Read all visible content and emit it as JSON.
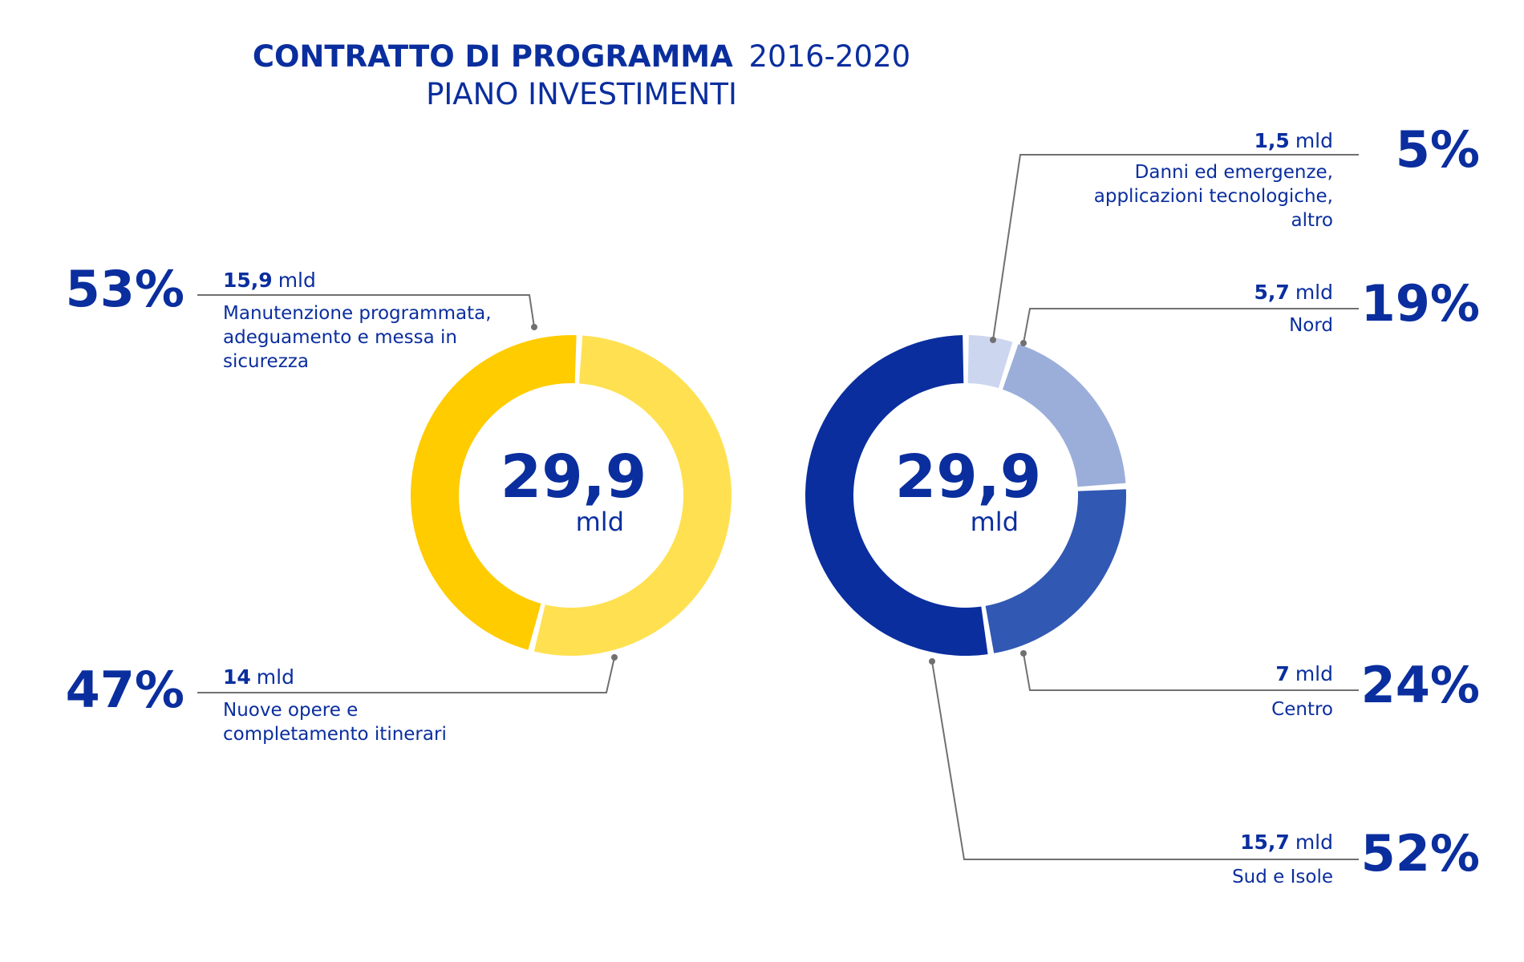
{
  "title": {
    "bold": "CONTRATTO DI PROGRAMMA",
    "regular": "2016-2020",
    "subtitle": "PIANO INVESTIMENTI"
  },
  "unit": "mld",
  "colors": {
    "text": "#0A2E9E",
    "leader": "#707070",
    "yellow_dark": "#FFCC00",
    "yellow_light": "#FFE050",
    "blue_dark": "#0A2E9E",
    "blue_mid": "#3158B3",
    "blue_light": "#9BAEDA",
    "blue_pale": "#CCD6EE"
  },
  "chart_data": [
    {
      "type": "donut",
      "center_value": "29,9",
      "center_unit": "mld",
      "total": 29.9,
      "slices": [
        {
          "pct_label": "53%",
          "value": 15.9,
          "value_label": "15,9",
          "unit": "mld",
          "label": [
            "Manutenzione programmata,",
            "adeguamento e messa in",
            "sicurezza"
          ],
          "color": "#FFE050"
        },
        {
          "pct_label": "47%",
          "value": 14,
          "value_label": "14",
          "unit": "mld",
          "label": [
            "Nuove opere e",
            "completamento itinerari"
          ],
          "color": "#FFCC00"
        }
      ]
    },
    {
      "type": "donut",
      "center_value": "29,9",
      "center_unit": "mld",
      "total": 29.9,
      "slices": [
        {
          "pct_label": "5%",
          "value": 1.5,
          "value_label": "1,5",
          "unit": "mld",
          "label": [
            "Danni ed emergenze,",
            "applicazioni tecnologiche,",
            "altro"
          ],
          "color": "#CCD6EE"
        },
        {
          "pct_label": "19%",
          "value": 5.7,
          "value_label": "5,7",
          "unit": "mld",
          "label": [
            "Nord"
          ],
          "color": "#9BAEDA"
        },
        {
          "pct_label": "24%",
          "value": 7,
          "value_label": "7",
          "unit": "mld",
          "label": [
            "Centro"
          ],
          "color": "#3158B3"
        },
        {
          "pct_label": "52%",
          "value": 15.7,
          "value_label": "15,7",
          "unit": "mld",
          "label": [
            "Sud e Isole"
          ],
          "color": "#0A2E9E"
        }
      ]
    }
  ]
}
